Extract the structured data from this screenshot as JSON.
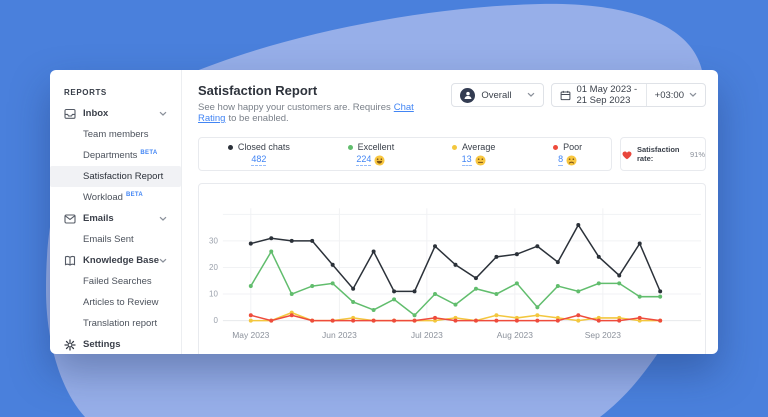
{
  "sidebar": {
    "section_label": "REPORTS",
    "items": [
      {
        "label": "Inbox"
      },
      {
        "label": "Team members"
      },
      {
        "label": "Departments",
        "badge": "BETA"
      },
      {
        "label": "Satisfaction Report"
      },
      {
        "label": "Workload",
        "badge": "BETA"
      },
      {
        "label": "Emails"
      },
      {
        "label": "Emails Sent"
      },
      {
        "label": "Knowledge Base"
      },
      {
        "label": "Failed Searches"
      },
      {
        "label": "Articles to Review"
      },
      {
        "label": "Translation report"
      },
      {
        "label": "Settings"
      }
    ]
  },
  "header": {
    "title": "Satisfaction Report",
    "subtitle_prefix": "See how happy your customers are. Requires",
    "subtitle_link": "Chat Rating",
    "subtitle_suffix": "to be enabled."
  },
  "controls": {
    "scope_value": "Overall",
    "date_range": "01 May 2023 - 21 Sep 2023",
    "timezone": "+03:00"
  },
  "legend": {
    "items": [
      {
        "label": "Closed chats",
        "value": "482",
        "color": "#2b3139",
        "emoji": null
      },
      {
        "label": "Excellent",
        "value": "224",
        "color": "#61bd6d",
        "emoji": "grinning"
      },
      {
        "label": "Average",
        "value": "13",
        "color": "#f3c73e",
        "emoji": "neutral"
      },
      {
        "label": "Poor",
        "value": "8",
        "color": "#ee4b3c",
        "emoji": "sad"
      }
    ],
    "satisfaction_label": "Satisfaction rate:",
    "satisfaction_value": "91%"
  },
  "chart_data": {
    "type": "line",
    "x_unit": "weekly points from 01 May 2023 to 18 Sep 2023 (21 points)",
    "x_tick_labels": [
      "May 2023",
      "Jun 2023",
      "Jul 2023",
      "Aug 2023",
      "Sep 2023"
    ],
    "x_tick_positions": [
      0,
      4.33,
      8.6,
      12.9,
      17.2
    ],
    "y_ticks": [
      0,
      10,
      20,
      30
    ],
    "ylim": [
      0,
      40
    ],
    "grid": true,
    "legend_position": "top",
    "series": [
      {
        "name": "Closed chats",
        "color": "#2b3139",
        "values": [
          29,
          31,
          30,
          30,
          21,
          12,
          26,
          11,
          11,
          28,
          21,
          16,
          24,
          25,
          28,
          22,
          36,
          24,
          17,
          29,
          11
        ]
      },
      {
        "name": "Excellent",
        "color": "#61bd6d",
        "values": [
          13,
          26,
          10,
          13,
          14,
          7,
          4,
          8,
          2,
          10,
          6,
          12,
          10,
          14,
          5,
          13,
          11,
          14,
          14,
          9,
          9
        ]
      },
      {
        "name": "Average",
        "color": "#f3c73e",
        "values": [
          0,
          0,
          3,
          0,
          0,
          1,
          0,
          0,
          0,
          0,
          1,
          0,
          2,
          1,
          2,
          1,
          0,
          1,
          1,
          0,
          0
        ]
      },
      {
        "name": "Poor",
        "color": "#ee4b3c",
        "values": [
          2,
          0,
          2,
          0,
          0,
          0,
          0,
          0,
          0,
          1,
          0,
          0,
          0,
          0,
          0,
          0,
          2,
          0,
          0,
          1,
          0
        ]
      }
    ]
  },
  "colors": {
    "page_bg": "#4a80dc",
    "blob": "#97afe9",
    "accent_blue": "#4285f4",
    "heart_red": "#e8463c",
    "grid_line": "#f1f2f4",
    "axis_text": "#9aa0ab"
  }
}
